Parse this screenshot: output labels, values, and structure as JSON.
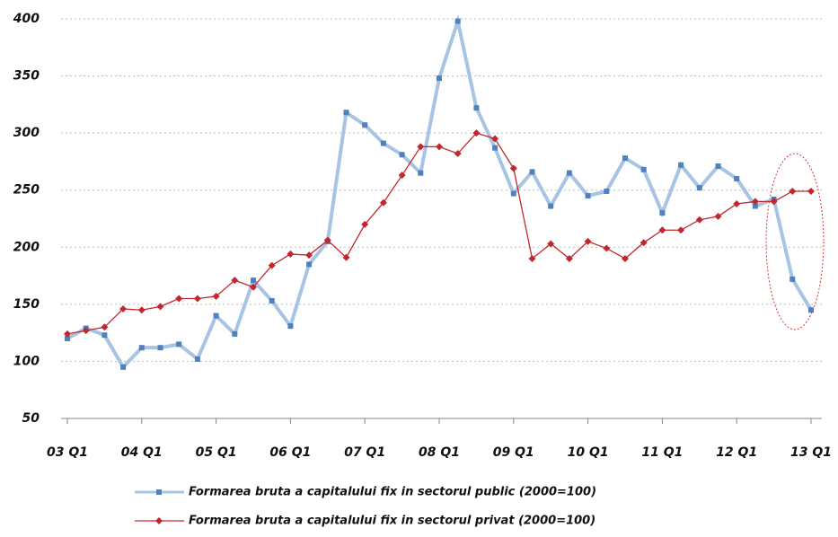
{
  "chart_data": {
    "type": "line",
    "categories": [
      "03 Q1",
      null,
      null,
      null,
      "04 Q1",
      null,
      null,
      null,
      "05 Q1",
      null,
      null,
      null,
      "06 Q1",
      null,
      null,
      null,
      "07 Q1",
      null,
      null,
      null,
      "08 Q1",
      null,
      null,
      null,
      "09 Q1",
      null,
      null,
      null,
      "10 Q1",
      null,
      null,
      null,
      "11 Q1",
      null,
      null,
      null,
      "12 Q1",
      null,
      null,
      null,
      "13 Q1"
    ],
    "series": [
      {
        "name": "Formarea bruta a capitalului fix in sectorul public  (2000=100)",
        "color": "#a8c4e4",
        "marker_color": "#4f81bd",
        "values": [
          120,
          129,
          123,
          95,
          112,
          112,
          115,
          102,
          140,
          124,
          171,
          153,
          131,
          185,
          205,
          318,
          307,
          291,
          281,
          265,
          348,
          398,
          322,
          287,
          247,
          266,
          236,
          265,
          245,
          249,
          278,
          268,
          230,
          272,
          252,
          271,
          260,
          236,
          242,
          172,
          145
        ]
      },
      {
        "name": "Formarea bruta a capitalului fix in sectorul privat  (2000=100)",
        "color": "#c0282d",
        "marker_color": "#c0282d",
        "values": [
          124,
          127,
          130,
          146,
          145,
          148,
          155,
          155,
          157,
          171,
          165,
          184,
          194,
          193,
          206,
          191,
          220,
          239,
          263,
          288,
          288,
          282,
          300,
          295,
          269,
          190,
          203,
          190,
          205,
          199,
          190,
          204,
          215,
          215,
          224,
          227,
          238,
          240,
          240,
          249,
          249
        ]
      }
    ],
    "ylim": [
      50,
      400
    ],
    "yticks": [
      50,
      100,
      150,
      200,
      250,
      300,
      350,
      400
    ],
    "grid": true
  }
}
